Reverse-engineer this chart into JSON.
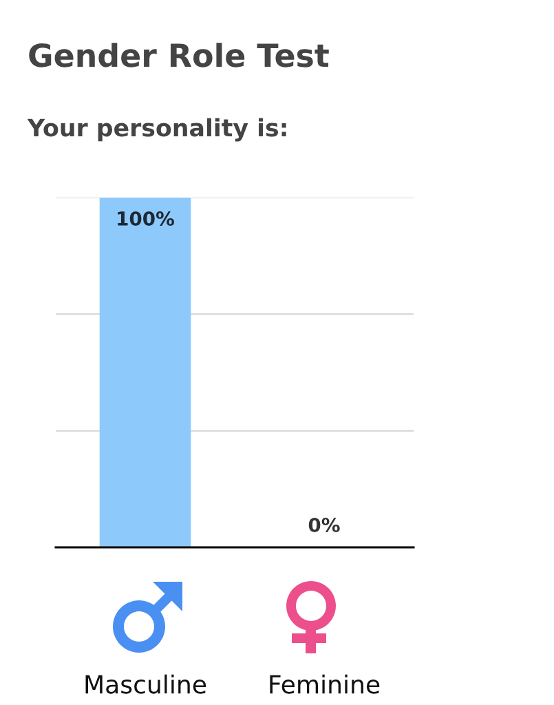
{
  "chart_data": {
    "type": "bar",
    "title": "Gender Role Test",
    "subtitle": "Your personality is:",
    "categories": [
      "Masculine",
      "Feminine"
    ],
    "values": [
      100,
      0
    ],
    "color": "#8ec9fb",
    "value_labels": [
      "100%",
      "0%"
    ],
    "ylim": [
      0,
      100
    ],
    "yticks": [
      {
        "value": 0,
        "label": null
      },
      {
        "value": 33.3,
        "label": null
      },
      {
        "value": 66.7,
        "label": null
      },
      {
        "value": 100,
        "label": null
      }
    ],
    "grid": "y",
    "tick_labels": "x"
  }
}
